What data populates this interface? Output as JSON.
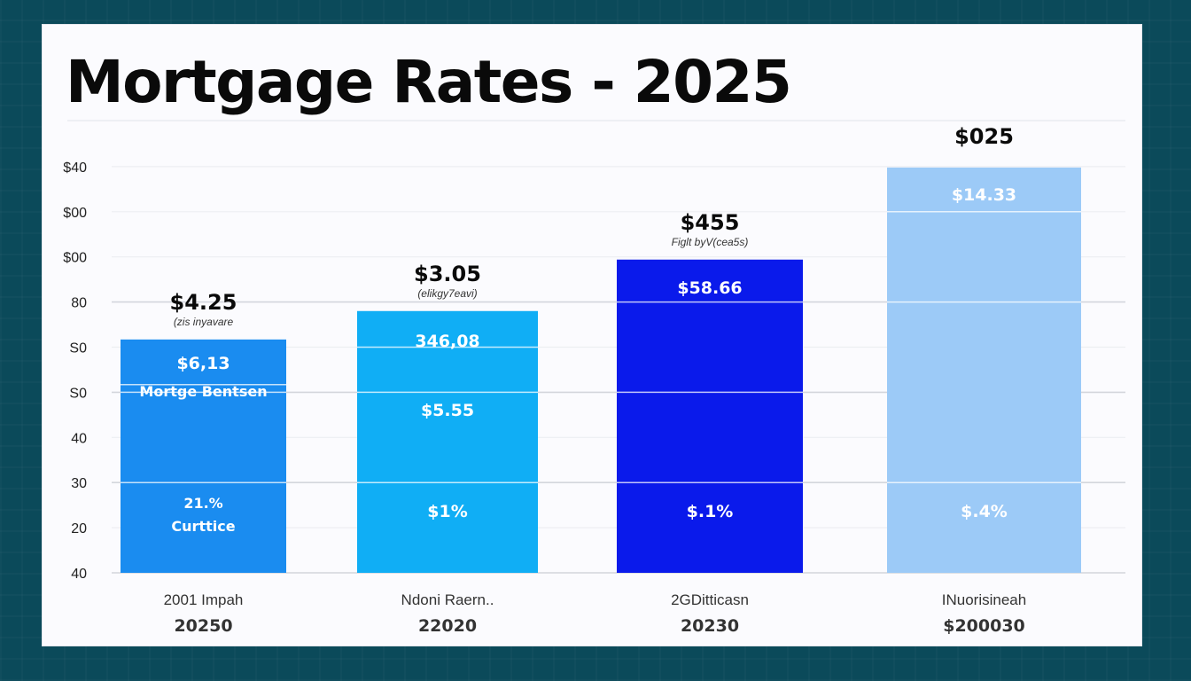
{
  "chart_data": {
    "type": "bar",
    "title": "Mortgage Rates - 2025",
    "xlabel": "",
    "ylabel": "",
    "grid": true,
    "legend": "none",
    "y_tick_labels": [
      "40",
      "20",
      "30",
      "40",
      "S0",
      "S0",
      "80",
      "$00",
      "$00",
      "$40"
    ],
    "ylim": [
      0,
      9
    ],
    "categories": [
      "2001 Impah",
      "Ndoni Raern..",
      "2GDitticasn",
      "INuorisineah"
    ],
    "category_years": [
      "20250",
      "22020",
      "20230",
      "$200030"
    ],
    "values": [
      5.17,
      5.8,
      6.94,
      8.98
    ],
    "colors": [
      "#1a8cf0",
      "#10aef5",
      "#0a1aeb",
      "#9ccaf7"
    ],
    "top_labels": [
      "$4.25",
      "$3.05",
      "$455",
      "$025"
    ],
    "top_notes": [
      "(zis inyavare",
      "(elikgy7eavi)",
      "Figlt byV(cea5s)",
      ""
    ],
    "segment_labels": [
      [
        "$6,13",
        "Mortge Bentsen",
        "21.%",
        "Curttice"
      ],
      [
        "346,08",
        "$5.55",
        "$1%"
      ],
      [
        "$58.66",
        "$.1%"
      ],
      [
        "$14.33",
        "$.4%"
      ]
    ]
  }
}
